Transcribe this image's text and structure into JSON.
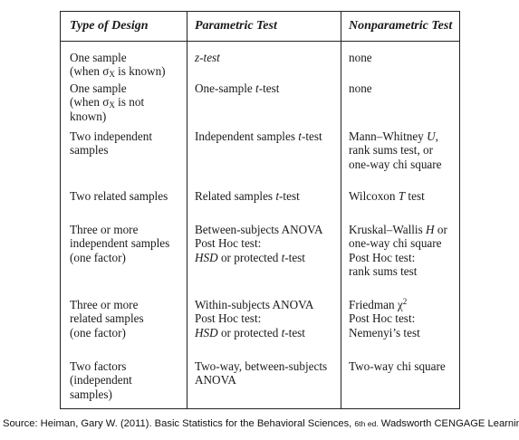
{
  "table": {
    "headers": [
      "Type of Design",
      "Parametric Test",
      "Nonparametric Test"
    ],
    "rows": [
      {
        "design": [
          "One sample",
          "(when σX is known)"
        ],
        "parametric": [
          "z-test"
        ],
        "nonparametric": [
          "none"
        ]
      },
      {
        "design": [
          "One sample",
          "(when σX is not",
          "known)"
        ],
        "parametric": [
          "One-sample t-test"
        ],
        "nonparametric": [
          "none"
        ]
      },
      {
        "design": [
          "Two independent",
          "samples"
        ],
        "parametric": [
          "Independent samples t-test"
        ],
        "nonparametric": [
          "Mann–Whitney U,",
          "rank sums test, or",
          "one-way chi square"
        ]
      },
      {
        "design": [
          "Two related samples"
        ],
        "parametric": [
          "Related samples t-test"
        ],
        "nonparametric": [
          "Wilcoxon T test"
        ]
      },
      {
        "design": [
          "Three or more",
          "independent samples",
          "(one factor)"
        ],
        "parametric": [
          "Between-subjects ANOVA",
          "Post Hoc test:",
          "HSD or protected t-test"
        ],
        "nonparametric": [
          "Kruskal–Wallis H or",
          "one-way chi square",
          "Post Hoc test:",
          "rank sums test"
        ]
      },
      {
        "design": [
          "Three or more",
          "related samples",
          "(one factor)"
        ],
        "parametric": [
          "Within-subjects ANOVA",
          "Post Hoc test:",
          "HSD or protected t-test"
        ],
        "nonparametric": [
          "Friedman χ2",
          "Post Hoc test:",
          "Nemenyi’s test"
        ]
      },
      {
        "design": [
          "Two factors",
          "(independent",
          "samples)"
        ],
        "parametric": [
          "Two-way, between-subjects",
          "ANOVA"
        ],
        "nonparametric": [
          "Two-way chi square"
        ]
      }
    ]
  },
  "source": {
    "prefix": "Source: Heiman, Gary W. (2011). Basic Statistics for the Behavioral Sciences, ",
    "edition": "6th ed.",
    "suffix": " Wadsworth CENGAGE Learning"
  }
}
